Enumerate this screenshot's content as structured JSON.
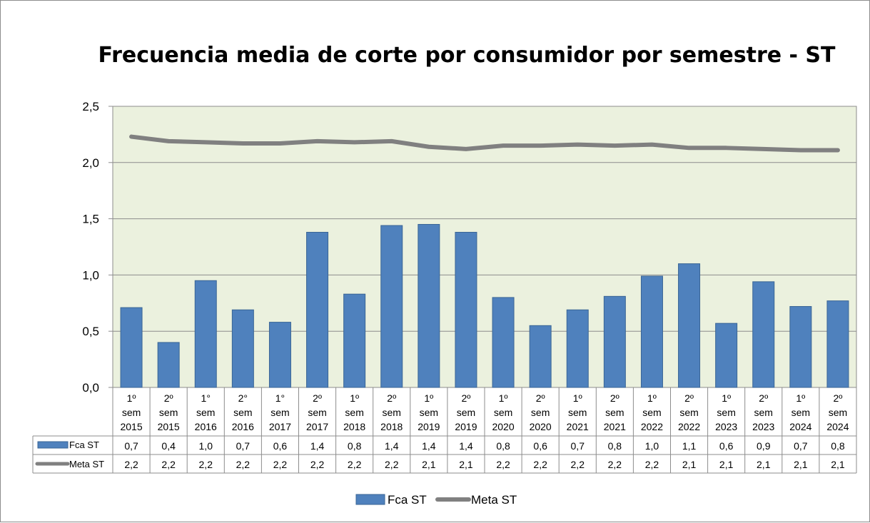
{
  "chart_data": {
    "type": "bar",
    "title": "Frecuencia media de corte por consumidor por semestre - ST",
    "categories": [
      [
        "1º",
        "sem",
        "2015"
      ],
      [
        "2º",
        "sem",
        "2015"
      ],
      [
        "1°",
        "sem",
        "2016"
      ],
      [
        "2°",
        "sem",
        "2016"
      ],
      [
        "1°",
        "sem",
        "2017"
      ],
      [
        "2º",
        "sem",
        "2017"
      ],
      [
        "1º",
        "sem",
        "2018"
      ],
      [
        "2º",
        "sem",
        "2018"
      ],
      [
        "1º",
        "sem",
        "2019"
      ],
      [
        "2º",
        "sem",
        "2019"
      ],
      [
        "1º",
        "sem",
        "2020"
      ],
      [
        "2º",
        "sem",
        "2020"
      ],
      [
        "1º",
        "sem",
        "2021"
      ],
      [
        "2º",
        "sem",
        "2021"
      ],
      [
        "1º",
        "sem",
        "2022"
      ],
      [
        "2º",
        "sem",
        "2022"
      ],
      [
        "1º",
        "sem",
        "2023"
      ],
      [
        "2º",
        "sem",
        "2023"
      ],
      [
        "1º",
        "sem",
        "2024"
      ],
      [
        "2º",
        "sem",
        "2024"
      ]
    ],
    "ylim": [
      0,
      2.5
    ],
    "yticks": [
      "0,0",
      "0,5",
      "1,0",
      "1,5",
      "2,0",
      "2,5"
    ],
    "yticks_values": [
      0,
      0.5,
      1.0,
      1.5,
      2.0,
      2.5
    ],
    "grid": true,
    "legend_position": "bottom",
    "series": [
      {
        "name": "Fca ST",
        "type": "bar",
        "color": "#4f81bd",
        "values": [
          0.71,
          0.4,
          0.95,
          0.69,
          0.58,
          1.38,
          0.83,
          1.44,
          1.45,
          1.38,
          0.8,
          0.55,
          0.69,
          0.81,
          0.99,
          1.1,
          0.57,
          0.94,
          0.72,
          0.77
        ],
        "labels": [
          "0,7",
          "0,4",
          "1,0",
          "0,7",
          "0,6",
          "1,4",
          "0,8",
          "1,4",
          "1,4",
          "1,4",
          "0,8",
          "0,6",
          "0,7",
          "0,8",
          "1,0",
          "1,1",
          "0,6",
          "0,9",
          "0,7",
          "0,8"
        ]
      },
      {
        "name": "Meta ST",
        "type": "line",
        "color": "#808080",
        "values": [
          2.23,
          2.19,
          2.18,
          2.17,
          2.17,
          2.19,
          2.18,
          2.19,
          2.14,
          2.12,
          2.15,
          2.15,
          2.16,
          2.15,
          2.16,
          2.13,
          2.13,
          2.12,
          2.11,
          2.11
        ],
        "labels": [
          "2,2",
          "2,2",
          "2,2",
          "2,2",
          "2,2",
          "2,2",
          "2,2",
          "2,2",
          "2,1",
          "2,1",
          "2,2",
          "2,2",
          "2,2",
          "2,2",
          "2,2",
          "2,1",
          "2,1",
          "2,1",
          "2,1",
          "2,1"
        ]
      }
    ],
    "plot_background": "#ebf1de"
  }
}
